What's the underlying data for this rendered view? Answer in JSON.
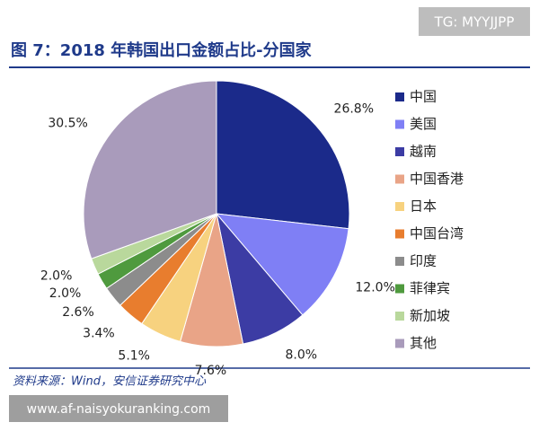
{
  "chart_data": {
    "type": "pie",
    "title": "图 7：2018 年韩国出口金额占比-分国家",
    "source": "资料来源：Wind，安信证券研究中心",
    "watermark": "TG: MYYJJPP",
    "site": "www.af-naisyokuranking.com",
    "categories": [
      "中国",
      "美国",
      "越南",
      "中国香港",
      "日本",
      "中国台湾",
      "印度",
      "菲律宾",
      "新加坡",
      "其他"
    ],
    "values": [
      26.8,
      12.0,
      8.0,
      7.6,
      5.1,
      3.4,
      2.6,
      2.0,
      2.0,
      30.5
    ],
    "value_labels": [
      "26.8%",
      "12.0%",
      "8.0%",
      "7.6%",
      "5.1%",
      "3.4%",
      "2.6%",
      "2.0%",
      "2.0%",
      "30.5%"
    ],
    "colors": [
      "#1b2a8a",
      "#7f7ff5",
      "#3c3ca4",
      "#e9a487",
      "#f7d27f",
      "#e87d2e",
      "#8c8c8c",
      "#4f9a3e",
      "#b9d89c",
      "#a99bbb"
    ]
  }
}
